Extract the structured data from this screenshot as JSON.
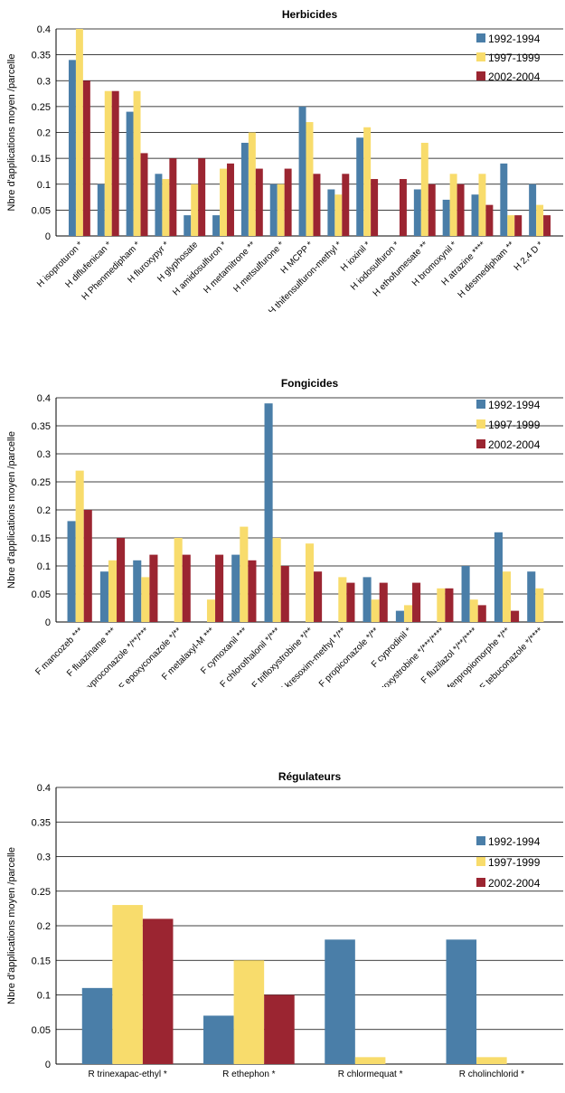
{
  "colors": {
    "s1": "#4a7ea8",
    "s2": "#f8dc6c",
    "s3": "#9b2531"
  },
  "chart_data": [
    {
      "type": "bar",
      "title": "Herbicides",
      "ylabel": "Nbre d'applications moyen /parcelle",
      "ylim": [
        0,
        0.4
      ],
      "yticks": [
        "0",
        "0.05",
        "0.1",
        "0.15",
        "0.2",
        "0.25",
        "0.3",
        "0.35",
        "0.4"
      ],
      "legend_position": "top-right",
      "categories": [
        "H isoproturon *",
        "H diflufenican *",
        "H Phenmedipham *",
        "H fluroxypyr *",
        "H glyphosate",
        "H amidosulfuron *",
        "H metamitrone **",
        "H metsulfurone *",
        "H MCPP *",
        "H thifensulfuron-methyl *",
        "H ioxinil *",
        "H iodosulfuron *",
        "H ethofumesate **",
        "H bromoxynil *",
        "H atrazine ****",
        "H desmedipham **",
        "H 2,4 D *"
      ],
      "series": [
        {
          "name": "1992-1994",
          "values": [
            0.34,
            0.1,
            0.24,
            0.12,
            0.04,
            0.04,
            0.18,
            0.1,
            0.25,
            0.09,
            0.19,
            0,
            0.09,
            0.07,
            0.08,
            0.14,
            0.1
          ]
        },
        {
          "name": "1997-1999",
          "values": [
            0.4,
            0.28,
            0.28,
            0.11,
            0.1,
            0.13,
            0.2,
            0.1,
            0.22,
            0.08,
            0.21,
            0,
            0.18,
            0.12,
            0.12,
            0.04,
            0.06
          ]
        },
        {
          "name": "2002-2004",
          "values": [
            0.3,
            0.28,
            0.16,
            0.15,
            0.15,
            0.14,
            0.13,
            0.13,
            0.12,
            0.12,
            0.11,
            0.11,
            0.1,
            0.1,
            0.06,
            0.04,
            0.04
          ]
        }
      ]
    },
    {
      "type": "bar",
      "title": "Fongicides",
      "ylabel": "Nbre d'applications moyen /parcelle",
      "ylim": [
        0,
        0.4
      ],
      "yticks": [
        "0",
        "0.05",
        "0.1",
        "0.15",
        "0.2",
        "0.25",
        "0.3",
        "0.35",
        "0.4"
      ],
      "legend_position": "top-right",
      "categories": [
        "F mancozeb ***",
        "F fluaziname ***",
        "F cyproconazole */**/***",
        "F epoxyconazole */**",
        "F metalaxyl-M ***",
        "F cymoxanil ***",
        "F chlorothalonil */***",
        "F trifloxystrobine */**",
        "F kresoxim-methyl */**",
        "F propiconazole */**",
        "F cyprodinil *",
        "F azoxystrobine */***/****",
        "F fluzilazol */**/****",
        "F fenpropiomorphe */**",
        "F tebuconazole */****"
      ],
      "series": [
        {
          "name": "1992-1994",
          "values": [
            0.18,
            0.09,
            0.11,
            0,
            0,
            0.12,
            0.39,
            0,
            0,
            0.08,
            0.02,
            0,
            0.1,
            0.16,
            0.09
          ]
        },
        {
          "name": "1997-1999",
          "values": [
            0.27,
            0.11,
            0.08,
            0.15,
            0.04,
            0.17,
            0.15,
            0.14,
            0.08,
            0.04,
            0.03,
            0.06,
            0.04,
            0.09,
            0.06
          ]
        },
        {
          "name": "2002-2004",
          "values": [
            0.2,
            0.15,
            0.12,
            0.12,
            0.12,
            0.11,
            0.1,
            0.09,
            0.07,
            0.07,
            0.07,
            0.06,
            0.03,
            0.02,
            0
          ]
        }
      ]
    },
    {
      "type": "bar",
      "title": "Régulateurs",
      "ylabel": "Nbre d'applications moyen /parcelle",
      "ylim": [
        0,
        0.4
      ],
      "yticks": [
        "0",
        "0.05",
        "0.1",
        "0.15",
        "0.2",
        "0.25",
        "0.3",
        "0.35",
        "0.4"
      ],
      "legend_position": "top-right",
      "categories": [
        "R trinexapac-ethyl *",
        "R ethephon *",
        "R chlormequat *",
        "R cholinchlorid *"
      ],
      "series": [
        {
          "name": "1992-1994",
          "values": [
            0.11,
            0.07,
            0.18,
            0.18
          ]
        },
        {
          "name": "1997-1999",
          "values": [
            0.23,
            0.15,
            0.01,
            0.01
          ]
        },
        {
          "name": "2002-2004",
          "values": [
            0.21,
            0.1,
            0,
            0
          ]
        }
      ]
    }
  ]
}
